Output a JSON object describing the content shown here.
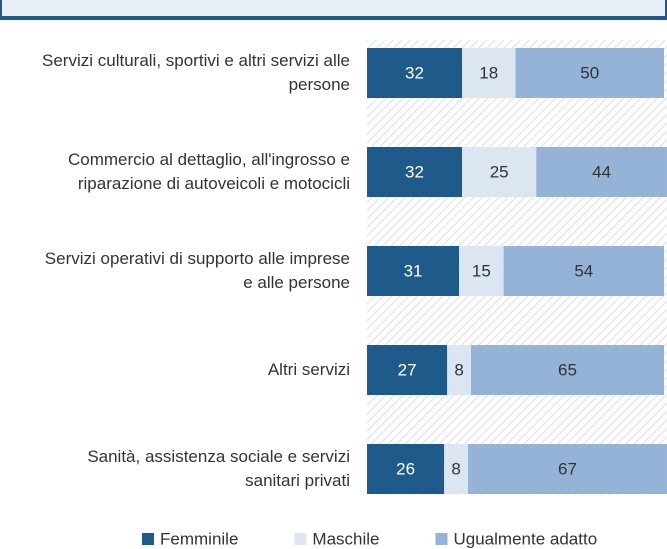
{
  "chart_data": {
    "type": "stacked-barh",
    "categories": [
      "Servizi culturali, sportivi e altri servizi alle persone",
      "Commercio al dettaglio, all'ingrosso e riparazione di autoveicoli e motocicli",
      "Servizi operativi di supporto alle imprese e alle persone",
      "Altri servizi",
      "Sanità, assistenza sociale e servizi sanitari privati"
    ],
    "series": [
      {
        "name": "Femminile",
        "color": "#1f5b8a",
        "values": [
          32,
          32,
          31,
          27,
          26
        ]
      },
      {
        "name": "Maschile",
        "color": "#dce6f2",
        "values": [
          18,
          25,
          15,
          8,
          8
        ]
      },
      {
        "name": "Ugualmente adatto",
        "color": "#95b3d7",
        "values": [
          50,
          44,
          54,
          65,
          67
        ]
      }
    ],
    "xlim": [
      0,
      100
    ]
  }
}
